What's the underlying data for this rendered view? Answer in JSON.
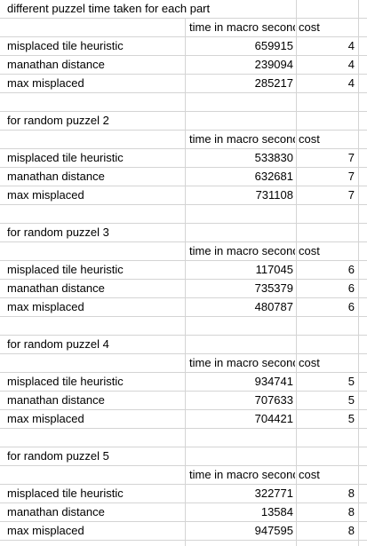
{
  "title": "different puzzel time taken for each part",
  "column_headers": {
    "time": "time in macro seconds",
    "cost": "cost"
  },
  "blocks": [
    {
      "heading": "",
      "rows": [
        {
          "method": "misplaced tile heuristic",
          "time": "659915",
          "cost": "4"
        },
        {
          "method": "manathan distance",
          "time": "239094",
          "cost": "4"
        },
        {
          "method": "max misplaced",
          "time": "285217",
          "cost": "4"
        }
      ]
    },
    {
      "heading": "for random puzzel 2",
      "rows": [
        {
          "method": "misplaced tile heuristic",
          "time": "533830",
          "cost": "7"
        },
        {
          "method": "manathan distance",
          "time": "632681",
          "cost": "7"
        },
        {
          "method": "max misplaced",
          "time": "731108",
          "cost": "7"
        }
      ]
    },
    {
      "heading": "for random puzzel 3",
      "rows": [
        {
          "method": "misplaced tile heuristic",
          "time": "117045",
          "cost": "6"
        },
        {
          "method": "manathan distance",
          "time": "735379",
          "cost": "6"
        },
        {
          "method": "max misplaced",
          "time": "480787",
          "cost": "6"
        }
      ]
    },
    {
      "heading": "for random puzzel 4",
      "rows": [
        {
          "method": "misplaced tile heuristic",
          "time": "934741",
          "cost": "5"
        },
        {
          "method": "manathan distance",
          "time": "707633",
          "cost": "5"
        },
        {
          "method": "max misplaced",
          "time": "704421",
          "cost": "5"
        }
      ]
    },
    {
      "heading": "for random puzzel 5",
      "rows": [
        {
          "method": "misplaced tile heuristic",
          "time": "322771",
          "cost": "8"
        },
        {
          "method": "manathan distance",
          "time": "13584",
          "cost": "8"
        },
        {
          "method": "max misplaced",
          "time": "947595",
          "cost": "8"
        }
      ]
    }
  ]
}
